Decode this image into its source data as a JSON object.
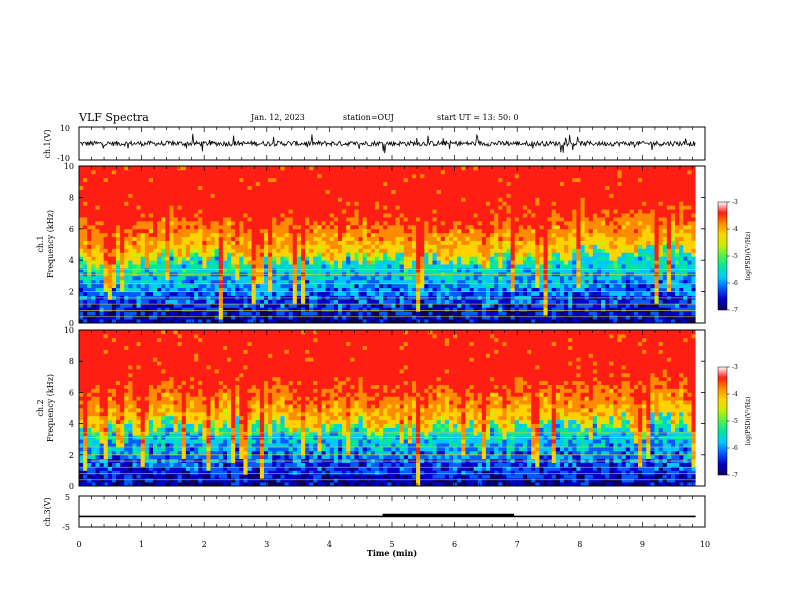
{
  "header": {
    "title": "VLF Spectra",
    "date": "Jan. 12, 2023",
    "station": "station=OUJ",
    "start": "start UT =  13: 50: 0"
  },
  "colors": {
    "colormap": [
      "#08005a",
      "#0000c8",
      "#005aff",
      "#00c8ff",
      "#00e6a0",
      "#50f050",
      "#c8f000",
      "#ffd200",
      "#ff8c00",
      "#ff1e14",
      "#ffffff"
    ],
    "trace": "#000000",
    "band_line": "#e8d020"
  },
  "chart_data": [
    {
      "type": "line",
      "name": "ch1-waveform",
      "ylabel": "ch.1(V)",
      "ylim": [
        -10,
        10
      ],
      "yticks": [
        "10",
        "-10"
      ],
      "x": [
        0,
        10
      ],
      "note_values": "noisy waveform around 0 V"
    },
    {
      "type": "heatmap",
      "name": "ch1-spectrogram",
      "ylabel": "ch.1\nFrequency (kHz)",
      "ylabel_lines": [
        "ch.1",
        "Frequency (kHz)"
      ],
      "ylim": [
        0,
        10
      ],
      "yticks": [
        "0",
        "2",
        "4",
        "6",
        "8",
        "10"
      ],
      "xlim": [
        0,
        9.85
      ],
      "colorbar": {
        "label": "log(PSD)(V²/Hz)",
        "ticks": [
          "-3",
          "-4",
          "-5",
          "-6",
          "-7"
        ],
        "range": [
          -7,
          -3
        ]
      },
      "band_lines_khz": [
        0.4,
        0.8,
        1.2,
        1.6,
        2.0,
        2.5,
        3.1,
        3.4
      ],
      "transition_khz": [
        [
          0,
          3.8
        ],
        [
          0.5,
          4.2
        ],
        [
          1.0,
          4.0
        ],
        [
          1.5,
          4.4
        ],
        [
          2.0,
          4.0
        ],
        [
          2.5,
          4.2
        ],
        [
          3.0,
          4.0
        ],
        [
          3.5,
          4.3
        ],
        [
          4.0,
          3.9
        ],
        [
          4.5,
          4.1
        ],
        [
          5.0,
          4.0
        ],
        [
          5.5,
          4.0
        ],
        [
          6.0,
          4.2
        ],
        [
          6.5,
          3.9
        ],
        [
          7.0,
          4.2
        ],
        [
          7.5,
          4.1
        ],
        [
          8.0,
          4.4
        ],
        [
          8.5,
          4.6
        ],
        [
          9.0,
          4.5
        ],
        [
          9.5,
          4.7
        ],
        [
          9.85,
          4.6
        ]
      ]
    },
    {
      "type": "heatmap",
      "name": "ch2-spectrogram",
      "ylabel": "ch.2\nFrequency (kHz)",
      "ylabel_lines": [
        "ch.2",
        "Frequency (kHz)"
      ],
      "ylim": [
        0,
        10
      ],
      "yticks": [
        "0",
        "2",
        "4",
        "6",
        "8",
        "10"
      ],
      "xlim": [
        0,
        9.85
      ],
      "colorbar": {
        "label": "log(PSD)(V²/Hz)",
        "ticks": [
          "-3",
          "-4",
          "-5",
          "-6",
          "-7"
        ],
        "range": [
          -7,
          -3
        ]
      },
      "band_lines_khz": [
        0.4,
        0.8,
        1.2,
        1.6,
        2.0,
        2.5,
        3.1,
        3.4
      ],
      "transition_khz": [
        [
          0,
          3.6
        ],
        [
          0.5,
          4.0
        ],
        [
          1.0,
          3.8
        ],
        [
          1.5,
          4.0
        ],
        [
          2.0,
          3.6
        ],
        [
          2.5,
          3.9
        ],
        [
          3.0,
          3.7
        ],
        [
          3.5,
          3.9
        ],
        [
          4.0,
          3.6
        ],
        [
          4.5,
          3.8
        ],
        [
          5.0,
          3.7
        ],
        [
          5.5,
          3.6
        ],
        [
          6.0,
          3.9
        ],
        [
          6.5,
          3.6
        ],
        [
          7.0,
          3.9
        ],
        [
          7.5,
          3.8
        ],
        [
          8.0,
          4.0
        ],
        [
          8.5,
          4.2
        ],
        [
          9.0,
          4.1
        ],
        [
          9.5,
          4.2
        ],
        [
          9.85,
          4.1
        ]
      ]
    },
    {
      "type": "line",
      "name": "ch3-signal",
      "ylabel": "ch.3(V)",
      "ylim": [
        -5,
        5
      ],
      "yticks": [
        "5",
        "-5"
      ],
      "segments": [
        {
          "x": [
            0,
            9.85
          ],
          "y": -1.6,
          "weight": "thin"
        },
        {
          "x": [
            4.85,
            6.95
          ],
          "y": -1.2,
          "weight": "thick"
        }
      ]
    }
  ],
  "xaxis": {
    "label": "Time (min)",
    "ticks": [
      "0",
      "1",
      "2",
      "3",
      "4",
      "5",
      "6",
      "7",
      "8",
      "9",
      "10"
    ],
    "xlim": [
      0,
      10
    ]
  }
}
